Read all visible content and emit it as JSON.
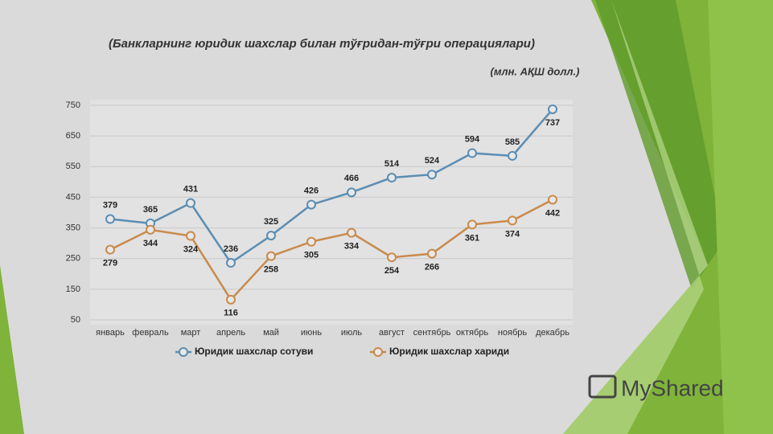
{
  "chart_data": {
    "type": "line",
    "title": "(Банкларнинг юридик шахслар билан тўғридан-тўғри операциялари)",
    "subtitle": "(млн. АҚШ долл.)",
    "categories": [
      "январь",
      "февраль",
      "март",
      "апрель",
      "май",
      "июнь",
      "июль",
      "август",
      "сентябрь",
      "октябрь",
      "ноябрь",
      "декабрь"
    ],
    "series": [
      {
        "name": "Юридик шахслар сотуви",
        "color": "#5b8db3",
        "values": [
          379,
          365,
          431,
          236,
          325,
          426,
          466,
          514,
          524,
          594,
          585,
          737
        ]
      },
      {
        "name": "Юридик шахслар хариди",
        "color": "#c98a4b",
        "values": [
          279,
          344,
          324,
          116,
          258,
          305,
          334,
          254,
          266,
          361,
          374,
          442
        ]
      }
    ],
    "ylim": [
      50,
      750
    ],
    "yticks": [
      50,
      150,
      250,
      350,
      450,
      550,
      650,
      750
    ],
    "grid": true,
    "legend": "bottom"
  },
  "watermark": "MyShared"
}
